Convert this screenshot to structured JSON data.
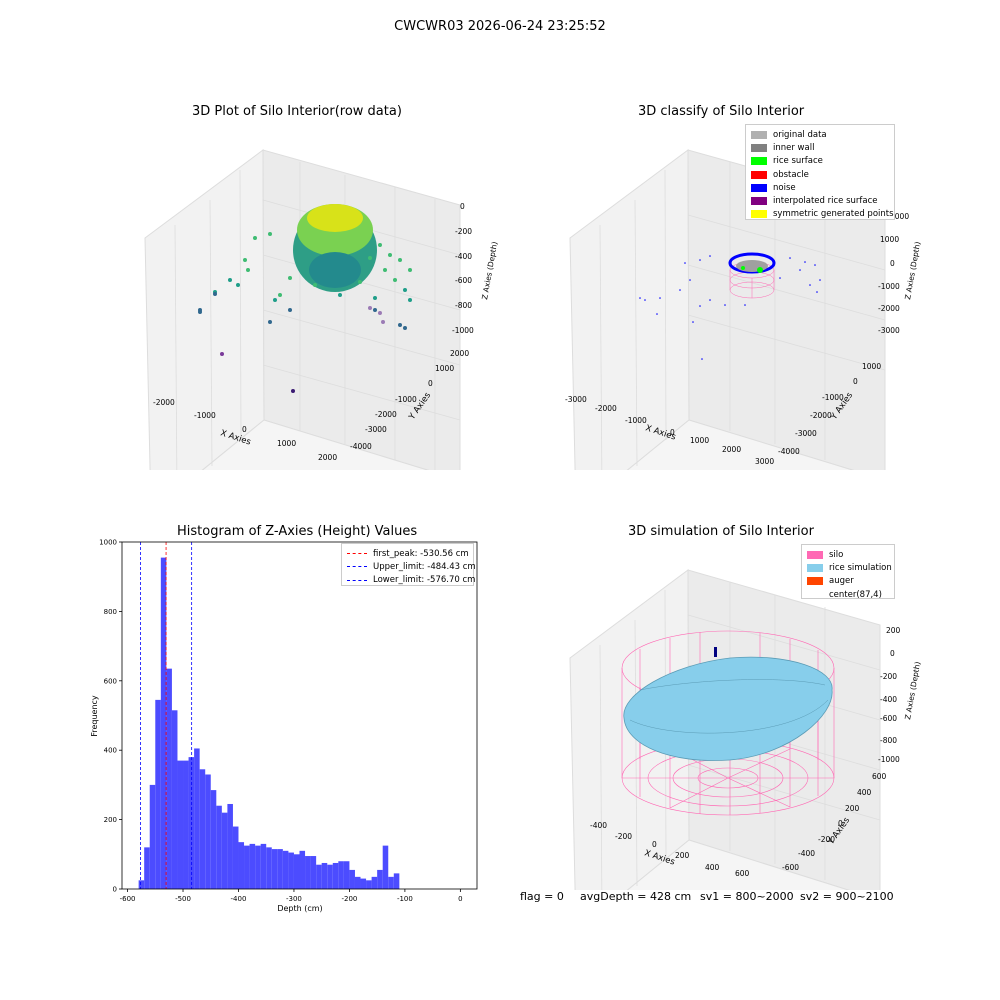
{
  "suptitle": "CWCWR03 2026-06-24 23:25:52",
  "panels": {
    "raw": {
      "title": "3D Plot of Silo Interior(row data)",
      "xlabel": "X Axies",
      "ylabel": "Y Axies",
      "zlabel": "Z Axies (Depth)",
      "xticks": [
        "-2000",
        "-1000",
        "0",
        "1000",
        "2000"
      ],
      "yticks": [
        "2000",
        "1000",
        "0",
        "-1000",
        "-2000",
        "-3000",
        "-4000"
      ],
      "zticks": [
        "0",
        "-200",
        "-400",
        "-600",
        "-800",
        "-1000"
      ]
    },
    "classify": {
      "title": "3D classify of Silo Interior",
      "xlabel": "X Axies",
      "ylabel": "Y Axies",
      "zlabel": "Z Axies (Depth)",
      "xticks": [
        "-3000",
        "-2000",
        "-1000",
        "0",
        "1000",
        "2000",
        "3000"
      ],
      "yticks": [
        "1000",
        "0",
        "-1000",
        "-2000",
        "-3000",
        "-4000"
      ],
      "zticks": [
        "1000",
        "0",
        "-1000",
        "-2000",
        "-3000"
      ],
      "legend": [
        {
          "label": "original data",
          "color": "#b0b0b0"
        },
        {
          "label": "inner wall",
          "color": "#808080"
        },
        {
          "label": "rice surface",
          "color": "#00ff00"
        },
        {
          "label": "obstacle",
          "color": "#ff0000"
        },
        {
          "label": "noise",
          "color": "#0000ff"
        },
        {
          "label": "interpolated rice surface",
          "color": "#800080"
        },
        {
          "label": "symmetric generated points",
          "color": "#ffff00"
        }
      ],
      "zoverlay": "2000"
    },
    "hist": {
      "title": "Histogram of Z-Axies (Height) Values",
      "xlabel": "Depth (cm)",
      "ylabel": "Frequency",
      "legend": [
        {
          "label": "first_peak: -530.56 cm",
          "color": "#ff0000"
        },
        {
          "label": "Upper_limit: -484.43 cm",
          "color": "#0000ff"
        },
        {
          "label": "Lower_limit: -576.70 cm",
          "color": "#0000ff"
        }
      ]
    },
    "sim": {
      "title": "3D simulation of Silo Interior",
      "xlabel": "X Axies",
      "ylabel": "Y Axies",
      "zlabel": "Z Axies (Depth)",
      "xticks": [
        "-400",
        "-200",
        "0",
        "200",
        "400",
        "600"
      ],
      "yticks": [
        "600",
        "400",
        "200",
        "0",
        "-200",
        "-400",
        "-600"
      ],
      "zticks": [
        "200",
        "0",
        "-200",
        "-400",
        "-600",
        "-800",
        "-1000"
      ],
      "legend": [
        {
          "label": "silo",
          "color": "#ff69b4"
        },
        {
          "label": "rice simulation",
          "color": "#87ceeb"
        },
        {
          "label": "auger",
          "color": "#ff4500"
        },
        {
          "label": "center(87,4)",
          "color": ""
        }
      ]
    }
  },
  "footer": {
    "flag": "flag = 0",
    "avg": "avgDepth = 428 cm",
    "sv1": "sv1 = 800~2000",
    "sv2": "sv2 = 900~2100"
  },
  "colors": {
    "hist_bar": "#4c4cff",
    "pane": "#f2f2f2",
    "silo": "#ff69b4",
    "rice": "#87ceeb"
  },
  "chart_data": [
    {
      "type": "histogram",
      "title": "Histogram of Z-Axies (Height) Values",
      "xlabel": "Depth (cm)",
      "ylabel": "Frequency",
      "xlim": [
        -610,
        30
      ],
      "ylim": [
        0,
        1000
      ],
      "xticks": [
        -600,
        -500,
        -400,
        -300,
        -200,
        -100,
        0
      ],
      "yticks": [
        0,
        200,
        400,
        600,
        800,
        1000
      ],
      "bin_edges_start": -580,
      "bin_width": 10,
      "counts": [
        25,
        120,
        300,
        545,
        955,
        635,
        515,
        370,
        370,
        380,
        405,
        345,
        330,
        285,
        240,
        220,
        245,
        180,
        135,
        125,
        130,
        125,
        130,
        120,
        115,
        115,
        110,
        105,
        100,
        110,
        95,
        95,
        70,
        75,
        70,
        75,
        80,
        80,
        55,
        35,
        30,
        25,
        35,
        55,
        125,
        35,
        45
      ],
      "lines": [
        {
          "name": "first_peak: -530.56 cm",
          "x": -530.56,
          "color": "#ff0000"
        },
        {
          "name": "Upper_limit: -484.43 cm",
          "x": -484.43,
          "color": "#0000ff"
        },
        {
          "name": "Lower_limit: -576.70 cm",
          "x": -576.7,
          "color": "#0000ff"
        }
      ],
      "legend_position": "top-right"
    }
  ]
}
